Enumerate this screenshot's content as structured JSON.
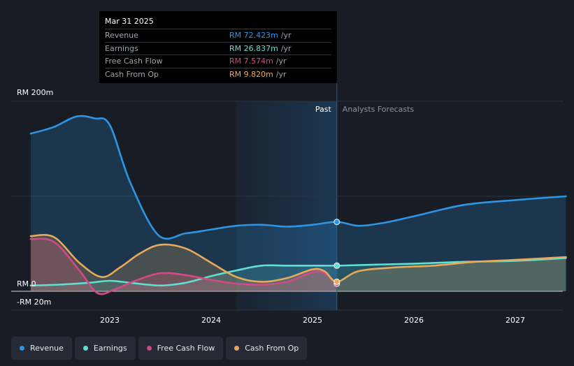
{
  "chart_data": {
    "type": "area",
    "y_unit": "RM m",
    "ylim": [
      -20,
      200
    ],
    "y_axis_labels": [
      {
        "value": 200,
        "label": "RM 200m"
      },
      {
        "value": 0,
        "label": "RM 0"
      },
      {
        "value": -20,
        "label": "-RM 20m"
      }
    ],
    "x_ticks": [
      {
        "value": 2023.0,
        "label": "2023"
      },
      {
        "value": 2024.0,
        "label": "2024"
      },
      {
        "value": 2025.0,
        "label": "2025"
      },
      {
        "value": 2026.0,
        "label": "2026"
      },
      {
        "value": 2027.0,
        "label": "2027"
      }
    ],
    "past_label": "Past",
    "forecast_label": "Analysts Forecasts",
    "divider_x": 2025.24,
    "past_shade_start_x": 2024.25,
    "series": [
      {
        "name": "Revenue",
        "color": "#2d95e3",
        "points": [
          [
            2022.22,
            166
          ],
          [
            2022.45,
            173
          ],
          [
            2022.67,
            184
          ],
          [
            2022.85,
            182
          ],
          [
            2023.0,
            175
          ],
          [
            2023.2,
            115
          ],
          [
            2023.48,
            59
          ],
          [
            2023.75,
            61
          ],
          [
            2024.0,
            65
          ],
          [
            2024.25,
            69
          ],
          [
            2024.5,
            70
          ],
          [
            2024.75,
            68
          ],
          [
            2025.0,
            70
          ],
          [
            2025.24,
            73
          ],
          [
            2025.45,
            69
          ],
          [
            2025.7,
            72
          ],
          [
            2026.0,
            79
          ],
          [
            2026.5,
            91
          ],
          [
            2027.0,
            96
          ],
          [
            2027.5,
            100
          ]
        ]
      },
      {
        "name": "Earnings",
        "color": "#5fe0d2",
        "points": [
          [
            2022.22,
            6
          ],
          [
            2022.5,
            7
          ],
          [
            2022.8,
            9
          ],
          [
            2023.0,
            11
          ],
          [
            2023.2,
            9
          ],
          [
            2023.5,
            6
          ],
          [
            2023.75,
            9
          ],
          [
            2024.0,
            16
          ],
          [
            2024.25,
            22
          ],
          [
            2024.5,
            27
          ],
          [
            2024.75,
            27
          ],
          [
            2025.0,
            27
          ],
          [
            2025.24,
            27
          ],
          [
            2025.6,
            28
          ],
          [
            2026.0,
            29
          ],
          [
            2026.5,
            31
          ],
          [
            2027.0,
            32
          ],
          [
            2027.5,
            35
          ]
        ]
      },
      {
        "name": "Free Cash Flow",
        "color": "#d14a86",
        "points": [
          [
            2022.22,
            55
          ],
          [
            2022.45,
            52
          ],
          [
            2022.7,
            22
          ],
          [
            2022.88,
            -2
          ],
          [
            2023.05,
            2
          ],
          [
            2023.25,
            11
          ],
          [
            2023.5,
            19
          ],
          [
            2023.75,
            17
          ],
          [
            2024.0,
            12
          ],
          [
            2024.25,
            8
          ],
          [
            2024.5,
            7
          ],
          [
            2024.75,
            10
          ],
          [
            2025.0,
            20
          ],
          [
            2025.12,
            19
          ],
          [
            2025.24,
            8
          ]
        ]
      },
      {
        "name": "Cash From Op",
        "color": "#e9a85a",
        "points": [
          [
            2022.22,
            58
          ],
          [
            2022.45,
            57
          ],
          [
            2022.7,
            30
          ],
          [
            2022.92,
            15
          ],
          [
            2023.1,
            25
          ],
          [
            2023.3,
            40
          ],
          [
            2023.5,
            49
          ],
          [
            2023.75,
            45
          ],
          [
            2024.0,
            30
          ],
          [
            2024.25,
            15
          ],
          [
            2024.5,
            10
          ],
          [
            2024.75,
            14
          ],
          [
            2025.0,
            23
          ],
          [
            2025.12,
            21
          ],
          [
            2025.24,
            10
          ],
          [
            2025.45,
            21
          ],
          [
            2025.8,
            25
          ],
          [
            2026.2,
            27
          ],
          [
            2026.6,
            31
          ],
          [
            2027.0,
            33
          ],
          [
            2027.5,
            36
          ]
        ]
      }
    ]
  },
  "tooltip": {
    "date": "Mar 31 2025",
    "rows": [
      {
        "label": "Revenue",
        "value": "RM 72.423m",
        "unit": "/yr",
        "color": "#2d95e3"
      },
      {
        "label": "Earnings",
        "value": "RM 26.837m",
        "unit": "/yr",
        "color": "#5fe0d2"
      },
      {
        "label": "Free Cash Flow",
        "value": "RM 7.574m",
        "unit": "/yr",
        "color": "#d14a86"
      },
      {
        "label": "Cash From Op",
        "value": "RM 9.820m",
        "unit": "/yr",
        "color": "#e9a85a"
      }
    ]
  },
  "legend": [
    {
      "label": "Revenue",
      "color": "#2d95e3"
    },
    {
      "label": "Earnings",
      "color": "#5fe0d2"
    },
    {
      "label": "Free Cash Flow",
      "color": "#d14a86"
    },
    {
      "label": "Cash From Op",
      "color": "#e9a85a"
    }
  ]
}
